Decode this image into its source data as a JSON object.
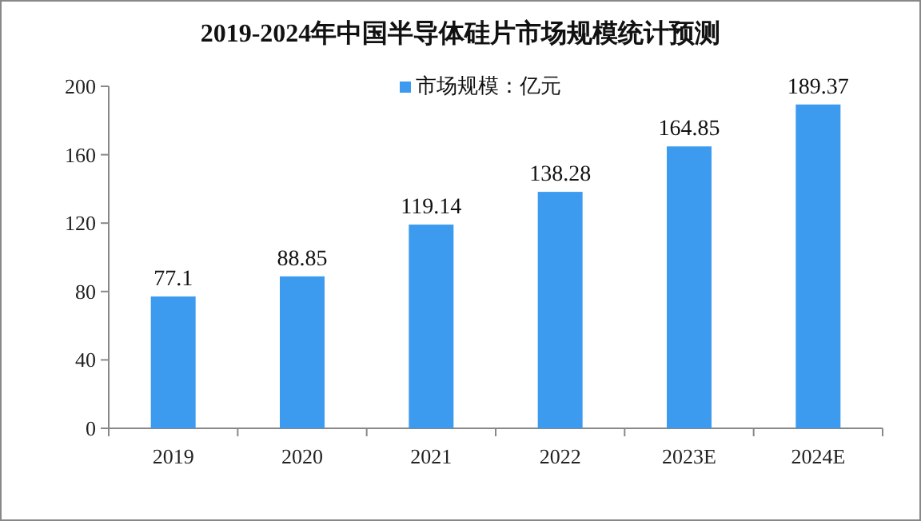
{
  "chart_data": {
    "type": "bar",
    "title": "2019-2024年中国半导体硅片市场规模统计预测",
    "categories": [
      "2019",
      "2020",
      "2021",
      "2022",
      "2023E",
      "2024E"
    ],
    "series": [
      {
        "name": "市场规模：亿元",
        "color": "#3d9bef",
        "values": [
          77.1,
          88.85,
          119.14,
          138.28,
          164.85,
          189.37
        ]
      }
    ],
    "ylim": [
      0,
      200
    ],
    "yticks": [
      0,
      40,
      80,
      120,
      160,
      200
    ],
    "data_labels": true,
    "legend": "top",
    "grid": false
  }
}
